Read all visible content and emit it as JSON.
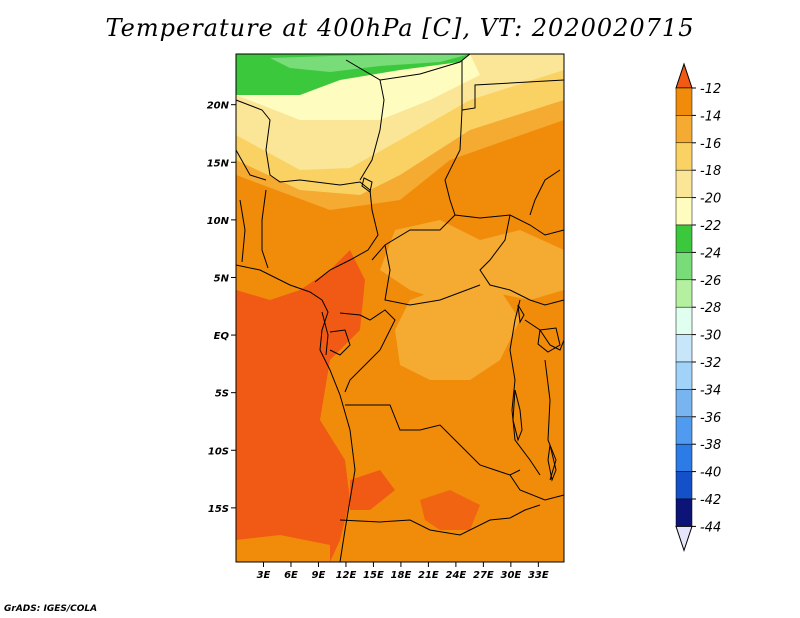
{
  "title": "Temperature at 400hPa [C], VT: 2020020715",
  "credit": "GrADS: IGES/COLA",
  "lat_ticks": [
    {
      "label": "20N",
      "value": 20
    },
    {
      "label": "15N",
      "value": 15
    },
    {
      "label": "10N",
      "value": 10
    },
    {
      "label": "5N",
      "value": 5
    },
    {
      "label": "EQ",
      "value": 0
    },
    {
      "label": "5S",
      "value": -5
    },
    {
      "label": "10S",
      "value": -10
    },
    {
      "label": "15S",
      "value": -15
    }
  ],
  "lon_ticks": [
    {
      "label": "3E",
      "value": 3
    },
    {
      "label": "6E",
      "value": 6
    },
    {
      "label": "9E",
      "value": 9
    },
    {
      "label": "12E",
      "value": 12
    },
    {
      "label": "15E",
      "value": 15
    },
    {
      "label": "18E",
      "value": 18
    },
    {
      "label": "21E",
      "value": 21
    },
    {
      "label": "24E",
      "value": 24
    },
    {
      "label": "27E",
      "value": 27
    },
    {
      "label": "30E",
      "value": 30
    },
    {
      "label": "33E",
      "value": 33
    }
  ],
  "colorbar": {
    "labels": [
      "-12",
      "-14",
      "-16",
      "-18",
      "-20",
      "-22",
      "-24",
      "-26",
      "-28",
      "-30",
      "-32",
      "-34",
      "-36",
      "-38",
      "-40",
      "-42",
      "-44"
    ],
    "colors": [
      "#f05a14",
      "#f08c0a",
      "#f5aa32",
      "#fad264",
      "#fae696",
      "#fefcbe",
      "#3cc83c",
      "#78dc78",
      "#b4f0a0",
      "#e1fff0",
      "#c8e6fa",
      "#a0d2fa",
      "#78b4f0",
      "#509bf0",
      "#2d7be6",
      "#1450c8",
      "#0c1478"
    ],
    "top_color": "#f05a14",
    "bottom_color": "#e6e6fa"
  },
  "colors": {
    "c_warm": "#f05a14",
    "c_orange": "#f5aa32",
    "c_lightorange": "#fad264",
    "c_yellow": "#fae696",
    "c_cream": "#fefcbe",
    "c_green": "#3cc83c",
    "c_lightgreen": "#78dc78",
    "c_mid": "#f08c0a"
  }
}
